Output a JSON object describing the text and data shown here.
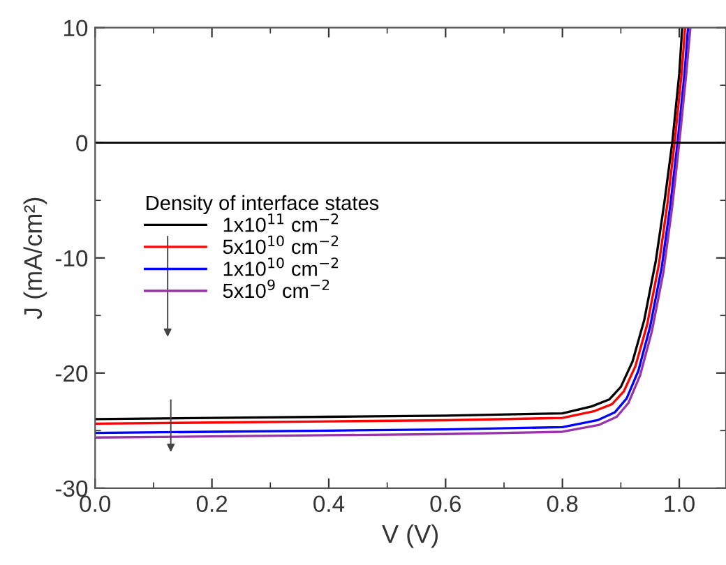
{
  "chart_data": {
    "type": "line",
    "xlabel": "V (V)",
    "ylabel": "J (mA/cm²)",
    "legend_title": "Density of interface states",
    "legend": "left",
    "grid": false,
    "marker": "none",
    "line_style": "solid",
    "xlim": [
      0,
      1.08
    ],
    "ylim": [
      -30,
      10
    ],
    "xticks": [
      {
        "value": 0,
        "label": "0.0"
      },
      {
        "value": 0.2,
        "label": "0.2"
      },
      {
        "value": 0.4,
        "label": "0.4"
      },
      {
        "value": 0.6,
        "label": "0.6"
      },
      {
        "value": 0.8,
        "label": "0.8"
      },
      {
        "value": 1.0,
        "label": "1.0"
      }
    ],
    "yticks": [
      -30,
      -20,
      -10,
      0,
      10
    ],
    "ref_lines": [
      {
        "axis": "y",
        "value": 0,
        "color": "#000000",
        "line_style": "solid"
      }
    ],
    "series": [
      {
        "name": "1x10$^{11}$ cm$^{−2}$",
        "color": "#000000",
        "x": [
          0,
          0.2,
          0.4,
          0.6,
          0.8,
          0.85,
          0.88,
          0.9,
          0.92,
          0.94,
          0.96,
          0.975,
          0.988,
          1.0,
          1.005
        ],
        "values": [
          -24.0,
          -23.9,
          -23.8,
          -23.7,
          -23.5,
          -22.9,
          -22.3,
          -21.2,
          -19.0,
          -15.4,
          -10.2,
          -5.0,
          0,
          6,
          10
        ]
      },
      {
        "name": "5x10$^{10}$ cm$^{−2}$",
        "color": "#ff0000",
        "x": [
          0,
          0.2,
          0.4,
          0.6,
          0.8,
          0.855,
          0.885,
          0.905,
          0.925,
          0.945,
          0.965,
          0.98,
          0.992,
          1.004,
          1.01
        ],
        "values": [
          -24.4,
          -24.3,
          -24.2,
          -24.1,
          -23.9,
          -23.3,
          -22.7,
          -21.6,
          -19.4,
          -15.8,
          -10.6,
          -5.2,
          0,
          6,
          10
        ]
      },
      {
        "name": "1x10$^{10}$ cm$^{−2}$",
        "color": "#0000ff",
        "x": [
          0,
          0.2,
          0.4,
          0.6,
          0.8,
          0.86,
          0.89,
          0.91,
          0.93,
          0.95,
          0.97,
          0.985,
          0.997,
          1.009,
          1.015
        ],
        "values": [
          -25.2,
          -25.1,
          -25.0,
          -24.9,
          -24.7,
          -24.1,
          -23.4,
          -22.2,
          -19.8,
          -16.0,
          -10.8,
          -5.3,
          0,
          6,
          10
        ]
      },
      {
        "name": "5x10$^{9}$ cm$^{−2}$",
        "color": "#9933aa",
        "x": [
          0,
          0.2,
          0.4,
          0.6,
          0.8,
          0.863,
          0.893,
          0.913,
          0.933,
          0.953,
          0.973,
          0.988,
          1.0,
          1.012,
          1.019
        ],
        "values": [
          -25.6,
          -25.5,
          -25.4,
          -25.3,
          -25.1,
          -24.5,
          -23.8,
          -22.6,
          -20.2,
          -16.4,
          -11.2,
          -5.5,
          0,
          6,
          10
        ]
      }
    ]
  }
}
